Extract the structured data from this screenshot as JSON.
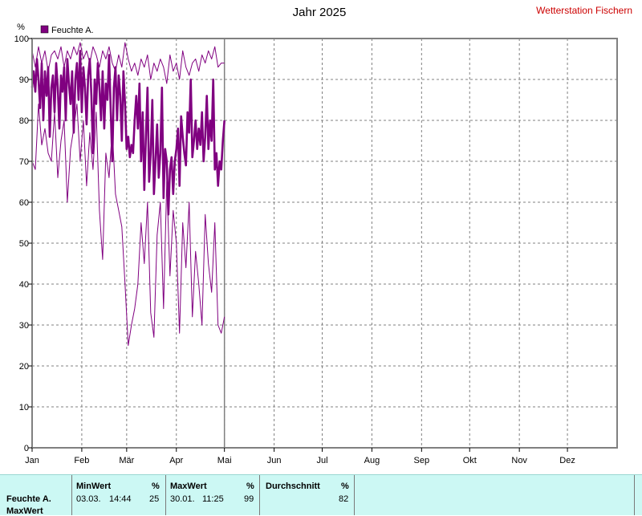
{
  "chart_data": {
    "type": "line",
    "title": "Jahr 2025",
    "station": "Wetterstation Fischern",
    "ylabel": "%",
    "ylim": [
      0,
      100
    ],
    "yticks": [
      0,
      10,
      20,
      30,
      40,
      50,
      60,
      70,
      80,
      90,
      100
    ],
    "xlim": [
      0,
      365
    ],
    "months": [
      "Jan",
      "Feb",
      "Mär",
      "Apr",
      "Mai",
      "Jun",
      "Jul",
      "Aug",
      "Sep",
      "Okt",
      "Nov",
      "Dez"
    ],
    "month_starts": [
      0,
      31,
      59,
      90,
      120,
      151,
      181,
      212,
      243,
      273,
      304,
      334
    ],
    "legend": "Feuchte A.",
    "color": "#800080",
    "grid": true,
    "current_day": 120,
    "series": [
      {
        "role": "mean",
        "x": [
          0,
          1,
          2,
          3,
          4,
          5,
          6,
          7,
          8,
          9,
          10,
          11,
          12,
          13,
          14,
          15,
          16,
          17,
          18,
          19,
          20,
          21,
          22,
          23,
          24,
          25,
          26,
          27,
          28,
          29,
          30,
          31,
          32,
          33,
          34,
          35,
          36,
          37,
          38,
          39,
          40,
          41,
          42,
          43,
          44,
          45,
          46,
          47,
          48,
          49,
          50,
          51,
          52,
          53,
          54,
          55,
          56,
          57,
          58,
          59,
          60,
          61,
          62,
          63,
          64,
          65,
          66,
          67,
          68,
          69,
          70,
          71,
          72,
          73,
          74,
          75,
          76,
          77,
          78,
          79,
          80,
          81,
          82,
          83,
          84,
          85,
          86,
          87,
          88,
          89,
          90,
          91,
          92,
          93,
          94,
          95,
          96,
          97,
          98,
          99,
          100,
          101,
          102,
          103,
          104,
          105,
          106,
          107,
          108,
          109,
          110,
          111,
          112,
          113,
          114,
          115,
          116,
          117,
          118,
          119,
          120
        ],
        "y": [
          88,
          92,
          87,
          95,
          90,
          83,
          94,
          80,
          92,
          86,
          93,
          76,
          88,
          91,
          82,
          94,
          88,
          78,
          91,
          87,
          93,
          80,
          95,
          89,
          84,
          92,
          77,
          90,
          94,
          85,
          97,
          82,
          93,
          88,
          79,
          91,
          95,
          86,
          72,
          90,
          84,
          94,
          88,
          80,
          92,
          78,
          89,
          85,
          96,
          83,
          70,
          88,
          93,
          80,
          91,
          86,
          75,
          92,
          84,
          73,
          76,
          71,
          74,
          72,
          80,
          86,
          78,
          89,
          70,
          82,
          63,
          76,
          88,
          65,
          72,
          85,
          62,
          70,
          79,
          66,
          72,
          88,
          61,
          73,
          70,
          57,
          68,
          71,
          62,
          70,
          73,
          78,
          64,
          81,
          76,
          72,
          69,
          82,
          77,
          90,
          71,
          75,
          80,
          73,
          78,
          74,
          82,
          70,
          76,
          86,
          73,
          80,
          75,
          90,
          68,
          72,
          64,
          70,
          68,
          75,
          80
        ]
      },
      {
        "role": "max",
        "x": [
          0,
          2,
          4,
          6,
          8,
          10,
          12,
          14,
          16,
          18,
          20,
          22,
          24,
          26,
          28,
          30,
          32,
          34,
          36,
          38,
          40,
          42,
          44,
          46,
          48,
          50,
          52,
          54,
          56,
          58,
          60,
          62,
          64,
          66,
          68,
          70,
          72,
          74,
          76,
          78,
          80,
          82,
          84,
          86,
          88,
          90,
          92,
          94,
          96,
          98,
          100,
          102,
          104,
          106,
          108,
          110,
          112,
          114,
          116,
          118,
          120
        ],
        "y": [
          97,
          93,
          98,
          94,
          97,
          92,
          96,
          97,
          95,
          98,
          93,
          97,
          95,
          98,
          96,
          99,
          95,
          97,
          94,
          98,
          96,
          93,
          97,
          95,
          98,
          94,
          92,
          96,
          93,
          99,
          95,
          92,
          94,
          91,
          95,
          93,
          96,
          90,
          94,
          92,
          95,
          93,
          89,
          96,
          92,
          94,
          90,
          97,
          93,
          91,
          94,
          95,
          92,
          96,
          94,
          97,
          95,
          98,
          93,
          94,
          94
        ]
      },
      {
        "role": "min",
        "x": [
          0,
          2,
          4,
          6,
          8,
          10,
          12,
          14,
          16,
          18,
          20,
          22,
          24,
          26,
          28,
          30,
          32,
          34,
          36,
          38,
          40,
          42,
          44,
          46,
          48,
          50,
          52,
          54,
          56,
          58,
          60,
          62,
          64,
          66,
          68,
          70,
          72,
          74,
          76,
          78,
          80,
          82,
          84,
          86,
          88,
          90,
          92,
          94,
          96,
          98,
          100,
          102,
          104,
          106,
          108,
          110,
          112,
          114,
          116,
          118,
          120
        ],
        "y": [
          70,
          68,
          84,
          74,
          78,
          72,
          70,
          82,
          66,
          75,
          80,
          60,
          73,
          78,
          84,
          70,
          80,
          64,
          77,
          68,
          82,
          58,
          46,
          72,
          66,
          78,
          62,
          58,
          54,
          40,
          25,
          30,
          34,
          40,
          55,
          45,
          60,
          33,
          27,
          52,
          60,
          34,
          65,
          42,
          58,
          50,
          28,
          55,
          44,
          60,
          32,
          48,
          40,
          30,
          57,
          45,
          38,
          55,
          30,
          28,
          32
        ]
      }
    ]
  },
  "stats": {
    "series_name": "Feuchte A.",
    "row_label": "MaxWert",
    "min": {
      "label": "MinWert",
      "unit": "%",
      "date": "03.03.",
      "time": "14:44",
      "value": "25"
    },
    "max": {
      "label": "MaxWert",
      "unit": "%",
      "date": "30.01.",
      "time": "11:25",
      "value": "99"
    },
    "avg": {
      "label": "Durchschnitt",
      "unit": "%",
      "value": "82"
    }
  }
}
